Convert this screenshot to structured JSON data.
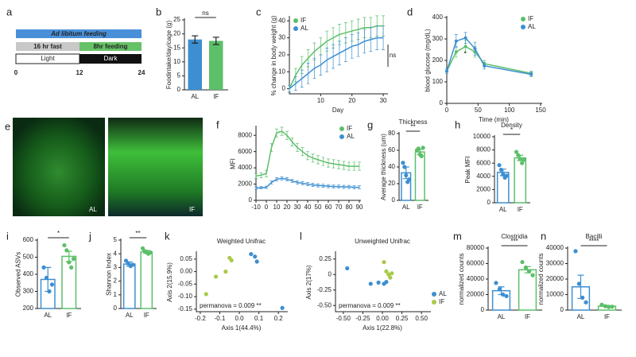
{
  "panel_a": {
    "label": "a",
    "ad_libitum": "Ad libitum feeding",
    "fast": "16 hr fast",
    "feeding": "8hr feeding",
    "light": "Light",
    "dark": "Dark",
    "ticks": [
      "0",
      "12",
      "24"
    ]
  },
  "panel_e": {
    "label": "e",
    "images": [
      "AL",
      "IF"
    ]
  },
  "chart_data": [
    {
      "label": "b",
      "type": "bar",
      "style": "filled",
      "ylabel": "Foodintake/day/cage (g)",
      "categories": [
        "AL",
        "IF"
      ],
      "values": [
        18.0,
        17.5
      ],
      "errors": [
        1.3,
        1.3
      ],
      "colors": [
        "#3d8fd1",
        "#5cbf6a"
      ],
      "ylim": [
        0,
        25
      ],
      "yticks": [
        0,
        5,
        10,
        15,
        20,
        25
      ],
      "significance": "ns"
    },
    {
      "label": "c",
      "type": "line",
      "ylabel": "% change in body weight (g)",
      "xlabel": "Day",
      "x": [
        0,
        2,
        4,
        6,
        8,
        10,
        12,
        14,
        16,
        18,
        20,
        22,
        24,
        26,
        28,
        30
      ],
      "series": [
        {
          "name": "IF",
          "color": "#5cbf6a",
          "values": [
            0,
            8,
            14,
            18,
            22,
            25,
            28,
            30,
            32,
            33,
            34,
            35,
            36,
            36,
            37,
            37
          ],
          "errors": [
            2,
            4,
            5,
            5,
            5,
            5,
            6,
            6,
            6,
            6,
            6,
            6,
            6,
            6,
            6,
            6
          ]
        },
        {
          "name": "AL",
          "color": "#3d8fd1",
          "values": [
            0,
            3,
            6,
            9,
            12,
            14,
            17,
            19,
            21,
            23,
            25,
            26,
            28,
            29,
            30,
            30
          ],
          "errors": [
            2,
            4,
            5,
            6,
            6,
            6,
            7,
            7,
            7,
            7,
            7,
            7,
            7,
            7,
            7,
            7
          ]
        }
      ],
      "xlim": [
        0,
        31
      ],
      "ylim": [
        -3,
        42
      ],
      "xticks": [
        10,
        20,
        30
      ],
      "yticks": [
        0,
        10,
        20,
        30,
        40
      ],
      "legend": "upper left",
      "significance": "ns"
    },
    {
      "label": "d",
      "type": "line",
      "markers": true,
      "ylabel": "blood glucose (mg/dL)",
      "xlabel": "Time (min)",
      "x": [
        0,
        15,
        30,
        45,
        60,
        135
      ],
      "series": [
        {
          "name": "IF",
          "color": "#5cbf6a",
          "values": [
            150,
            240,
            265,
            240,
            185,
            140
          ],
          "errors": [
            10,
            25,
            30,
            25,
            15,
            10
          ]
        },
        {
          "name": "AL",
          "color": "#3d8fd1",
          "values": [
            150,
            290,
            305,
            255,
            175,
            135
          ],
          "errors": [
            10,
            30,
            25,
            30,
            15,
            10
          ]
        }
      ],
      "xlim": [
        0,
        150
      ],
      "ylim": [
        0,
        400
      ],
      "xticks": [
        0,
        50,
        100,
        150
      ],
      "yticks": [
        0,
        100,
        200,
        300,
        400
      ],
      "legend": "upper right",
      "significance": "*"
    },
    {
      "label": "f",
      "type": "line",
      "ylabel": "MFI",
      "x": [
        -10,
        -5,
        0,
        5,
        10,
        15,
        20,
        25,
        30,
        35,
        40,
        45,
        50,
        55,
        60,
        65,
        70,
        75,
        80,
        85,
        90
      ],
      "series": [
        {
          "name": "IF",
          "color": "#5cbf6a",
          "values": [
            3000,
            3100,
            3300,
            6500,
            8300,
            8500,
            8000,
            7200,
            6500,
            6000,
            5500,
            5200,
            5000,
            4800,
            4600,
            4500,
            4400,
            4300,
            4200,
            4200,
            4200
          ],
          "errors": [
            300,
            300,
            400,
            500,
            500,
            500,
            500,
            500,
            500,
            500,
            500,
            500,
            500,
            500,
            500,
            500,
            500,
            500,
            500,
            500,
            500
          ]
        },
        {
          "name": "AL",
          "color": "#3d8fd1",
          "values": [
            1500,
            1550,
            1600,
            2200,
            2600,
            2700,
            2600,
            2400,
            2200,
            2100,
            2000,
            1900,
            1850,
            1800,
            1750,
            1700,
            1700,
            1650,
            1650,
            1600,
            1600
          ],
          "errors": [
            150,
            150,
            150,
            200,
            200,
            200,
            200,
            200,
            200,
            200,
            200,
            200,
            200,
            200,
            200,
            200,
            200,
            200,
            200,
            200,
            200
          ]
        }
      ],
      "xlim": [
        -10,
        90
      ],
      "ylim": [
        0,
        9000
      ],
      "xticks": [
        -10,
        0,
        10,
        20,
        30,
        40,
        50,
        60,
        70,
        80,
        90
      ],
      "yticks": [
        0,
        2000,
        4000,
        6000,
        8000
      ],
      "legend": "upper right"
    },
    {
      "label": "g",
      "type": "bar",
      "style": "outline",
      "title": "Thickness",
      "ylabel": "Average thickness (um)",
      "categories": [
        "AL",
        "IF"
      ],
      "values": [
        33,
        58
      ],
      "errors": [
        7,
        3
      ],
      "points": [
        [
          45,
          40,
          30,
          22,
          25
        ],
        [
          60,
          62,
          55,
          53,
          63
        ]
      ],
      "colors": [
        "#3d8fd1",
        "#5cbf6a"
      ],
      "ylim": [
        0,
        80
      ],
      "yticks": [
        0,
        20,
        40,
        60,
        80
      ],
      "significance": "**"
    },
    {
      "label": "h",
      "type": "bar",
      "style": "outline",
      "title": "Density",
      "ylabel": "Peak MFI",
      "categories": [
        "AL",
        "IF"
      ],
      "values": [
        4600,
        6800
      ],
      "errors": [
        500,
        400
      ],
      "points": [
        [
          5700,
          5000,
          4300,
          3800,
          4100
        ],
        [
          7700,
          7200,
          6600,
          6000,
          6500
        ]
      ],
      "colors": [
        "#3d8fd1",
        "#5cbf6a"
      ],
      "ylim": [
        0,
        10000
      ],
      "yticks": [
        0,
        2000,
        4000,
        6000,
        8000,
        10000
      ],
      "significance": "*"
    },
    {
      "label": "i",
      "type": "bar",
      "style": "outline",
      "ylabel": "Observed ASVs",
      "categories": [
        "AL",
        "IF"
      ],
      "values": [
        370,
        505
      ],
      "errors": [
        70,
        30
      ],
      "points": [
        [
          440,
          380,
          300,
          340
        ],
        [
          570,
          540,
          470,
          440,
          490
        ]
      ],
      "colors": [
        "#3d8fd1",
        "#5cbf6a"
      ],
      "ylim": [
        200,
        600
      ],
      "yticks": [
        200,
        300,
        400,
        500,
        600
      ],
      "significance": "*"
    },
    {
      "label": "j",
      "type": "bar",
      "style": "outline",
      "ylabel": "Shannon Index",
      "categories": [
        "AL",
        "IF"
      ],
      "values": [
        3.25,
        4.15
      ],
      "errors": [
        0.15,
        0.1
      ],
      "points": [
        [
          3.5,
          3.3,
          3.1,
          3.2
        ],
        [
          4.4,
          4.2,
          4.1,
          4.0,
          4.1
        ]
      ],
      "colors": [
        "#3d8fd1",
        "#5cbf6a"
      ],
      "ylim": [
        0,
        5
      ],
      "yticks": [
        0,
        1,
        2,
        3,
        4,
        5
      ],
      "significance": "**"
    },
    {
      "label": "k",
      "type": "scatter",
      "title": "Weighted Unifrac",
      "xlabel": "Axis 1(44.4%)",
      "ylabel": "Axis 2(15.9%)",
      "series": [
        {
          "name": "AL",
          "color": "#3d8fd1",
          "x": [
            0.06,
            0.08,
            0.09,
            0.22
          ],
          "values": [
            0.07,
            0.06,
            0.04,
            -0.145
          ]
        },
        {
          "name": "IF",
          "color": "#a8c94a",
          "x": [
            -0.17,
            -0.12,
            -0.07,
            -0.05,
            -0.04
          ],
          "values": [
            -0.09,
            -0.02,
            0.0,
            0.055,
            0.045
          ]
        }
      ],
      "xlim": [
        -0.22,
        0.24
      ],
      "ylim": [
        -0.16,
        0.075
      ],
      "xticks": [
        -0.2,
        -0.1,
        {
          "value": 0,
          "label": "0.0"
        },
        0.1,
        0.2
      ],
      "yticks": [
        -0.15,
        {
          "value": -0.1,
          "label": "-0.10"
        },
        -0.05,
        {
          "value": 0,
          "label": "0.00"
        },
        0.05
      ],
      "note": "permanova = 0.009 **"
    },
    {
      "label": "l",
      "type": "scatter",
      "title": "Unweighted Unifrac",
      "xlabel": "Axis 1(22.8%)",
      "ylabel": "Axis 2(17%)",
      "series": [
        {
          "name": "AL",
          "color": "#3d8fd1",
          "x": [
            -0.45,
            -0.15,
            -0.05,
            0.02,
            0.05
          ],
          "values": [
            0.1,
            -0.15,
            -0.13,
            -0.15,
            -0.12
          ]
        },
        {
          "name": "IF",
          "color": "#a8c94a",
          "x": [
            0.02,
            0.05,
            0.08,
            0.1,
            0.12
          ],
          "values": [
            0.2,
            0.05,
            0.0,
            -0.05,
            0.02
          ]
        }
      ],
      "xlim": [
        -0.6,
        0.6
      ],
      "ylim": [
        -0.6,
        0.35
      ],
      "xticks": [
        {
          "value": -0.5,
          "label": "-0.50"
        },
        -0.25,
        {
          "value": 0,
          "label": "0.00"
        },
        0.25,
        {
          "value": 0.5,
          "label": "0.50"
        }
      ],
      "yticks": [
        {
          "value": -0.5,
          "label": "-0.50"
        },
        -0.25,
        0,
        0.25
      ],
      "legend": "lower right",
      "note": "permanova = 0.009 **"
    },
    {
      "label": "m",
      "type": "bar",
      "style": "outline",
      "title": "Clostridia",
      "ylabel": "normalized counts",
      "categories": [
        "AL",
        "IF"
      ],
      "values": [
        25000,
        52000
      ],
      "errors": [
        5000,
        4000
      ],
      "points": [
        [
          35000,
          27000,
          20000,
          18000
        ],
        [
          62000,
          55000,
          50000,
          45000
        ]
      ],
      "colors": [
        "#3d8fd1",
        "#5cbf6a"
      ],
      "ylim": [
        0,
        80000
      ],
      "yticks": [
        0,
        20000,
        40000,
        60000,
        80000
      ],
      "significance": "***"
    },
    {
      "label": "n",
      "type": "bar",
      "style": "outline",
      "title": "Bacilli",
      "ylabel": "normalized counts",
      "categories": [
        "AL",
        "IF"
      ],
      "values": [
        15000,
        2500
      ],
      "errors": [
        7500,
        600
      ],
      "points": [
        [
          38000,
          17000,
          8000,
          5000
        ],
        [
          3500,
          2500,
          2000,
          2200
        ]
      ],
      "colors": [
        "#3d8fd1",
        "#5cbf6a"
      ],
      "ylim": [
        0,
        40000
      ],
      "yticks": [
        0,
        10000,
        20000,
        30000,
        40000
      ],
      "significance": "****"
    }
  ]
}
